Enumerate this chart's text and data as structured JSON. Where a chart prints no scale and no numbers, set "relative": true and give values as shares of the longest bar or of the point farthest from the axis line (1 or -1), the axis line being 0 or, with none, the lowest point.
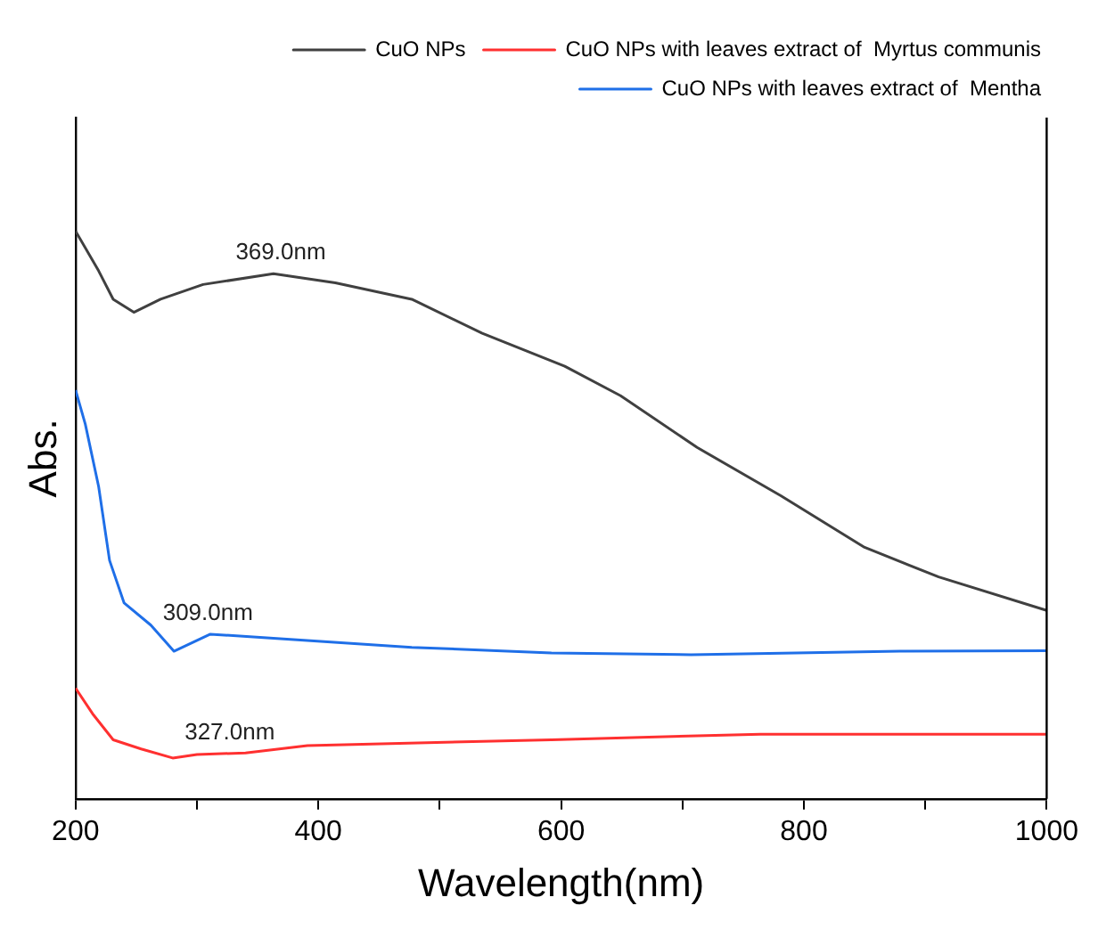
{
  "chart_data": {
    "type": "line",
    "relative": true,
    "xlabel": "Wavelength(nm)",
    "ylabel": "Abs.",
    "xlim": [
      200,
      1000
    ],
    "xticks": [
      200,
      {
        "value": 300,
        "label": null
      },
      400,
      {
        "value": 500,
        "label": null
      },
      600,
      {
        "value": 700,
        "label": null
      },
      800,
      {
        "value": 900,
        "label": null
      },
      1000
    ],
    "grid": false,
    "legend": "top right",
    "marker": "none",
    "line_style": "solid",
    "series": [
      {
        "name": "CuO NPs",
        "color": "#404040",
        "x": [
          200,
          219,
          231,
          248,
          270,
          305,
          363,
          414,
          477,
          535,
          603,
          649,
          712,
          781,
          850,
          911,
          1000
        ],
        "values": [
          1.0,
          0.93,
          0.88,
          0.857,
          0.88,
          0.906,
          0.925,
          0.909,
          0.88,
          0.82,
          0.762,
          0.71,
          0.619,
          0.534,
          0.443,
          0.391,
          0.332
        ]
      },
      {
        "name": "CuO NPs with leaves extract of  Myrtus communis",
        "color": "#ff3030",
        "x": [
          200,
          214,
          231,
          254,
          280,
          300,
          340,
          391,
          592,
          764,
          1000
        ],
        "values": [
          0.195,
          0.15,
          0.104,
          0.088,
          0.072,
          0.078,
          0.081,
          0.094,
          0.104,
          0.114,
          0.114
        ]
      },
      {
        "name": "CuO NPs with leaves extract of  Mentha",
        "color": "#1f6fe8",
        "x": [
          200,
          208,
          219,
          228,
          240,
          262,
          281,
          311,
          363,
          477,
          592,
          707,
          879,
          1000
        ],
        "values": [
          0.72,
          0.66,
          0.55,
          0.42,
          0.345,
          0.306,
          0.26,
          0.29,
          0.283,
          0.267,
          0.257,
          0.254,
          0.26,
          0.261
        ]
      }
    ],
    "annotations": [
      {
        "text": "369.0nm",
        "x": 369,
        "y": 0.925
      },
      {
        "text": "309.0nm",
        "x": 309,
        "y": 0.29
      },
      {
        "text": "327.0nm",
        "x": 327,
        "y": 0.08
      }
    ]
  }
}
